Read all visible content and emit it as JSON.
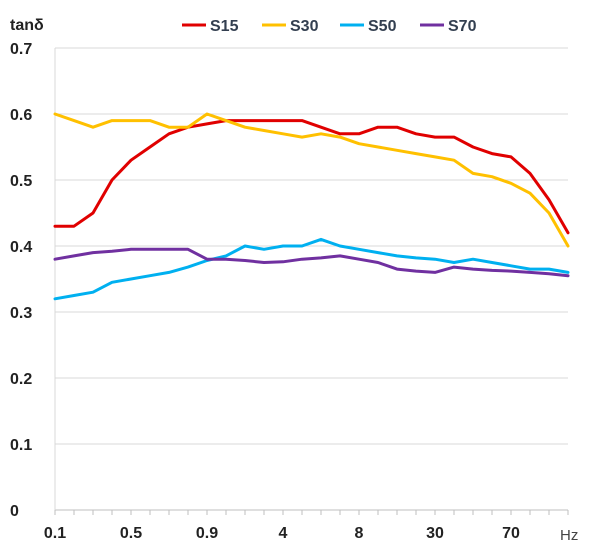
{
  "chart_data": {
    "type": "line",
    "ylabel": "tanδ",
    "xunit": "Hz",
    "ylim": [
      0,
      0.7
    ],
    "yticks": [
      "0",
      "0.1",
      "0.2",
      "0.3",
      "0.4",
      "0.5",
      "0.6",
      "0.7"
    ],
    "xticks": [
      "0.1",
      "0.5",
      "0.9",
      "4",
      "8",
      "30",
      "70"
    ],
    "grid": "horizontal",
    "legend_position": "top",
    "x": [
      0.1,
      0.2,
      0.3,
      0.4,
      0.5,
      0.6,
      0.7,
      0.8,
      0.9,
      1,
      2,
      3,
      4,
      5,
      6,
      7,
      8,
      9,
      10,
      20,
      30,
      40,
      50,
      60,
      70,
      80,
      90,
      100
    ],
    "series": [
      {
        "name": "S15",
        "color": "#e00000",
        "values": [
          0.43,
          0.43,
          0.45,
          0.5,
          0.53,
          0.55,
          0.57,
          0.58,
          0.585,
          0.59,
          0.59,
          0.59,
          0.59,
          0.59,
          0.58,
          0.57,
          0.57,
          0.58,
          0.58,
          0.57,
          0.565,
          0.565,
          0.55,
          0.54,
          0.535,
          0.51,
          0.47,
          0.42
        ]
      },
      {
        "name": "S30",
        "color": "#ffc000",
        "values": [
          0.6,
          0.59,
          0.58,
          0.59,
          0.59,
          0.59,
          0.58,
          0.58,
          0.6,
          0.59,
          0.58,
          0.575,
          0.57,
          0.565,
          0.57,
          0.565,
          0.555,
          0.55,
          0.545,
          0.54,
          0.535,
          0.53,
          0.51,
          0.505,
          0.495,
          0.48,
          0.45,
          0.4
        ]
      },
      {
        "name": "S50",
        "color": "#00b0f0",
        "values": [
          0.32,
          0.325,
          0.33,
          0.345,
          0.35,
          0.355,
          0.36,
          0.368,
          0.378,
          0.385,
          0.4,
          0.395,
          0.4,
          0.4,
          0.41,
          0.4,
          0.395,
          0.39,
          0.385,
          0.382,
          0.38,
          0.375,
          0.38,
          0.375,
          0.37,
          0.365,
          0.365,
          0.36
        ]
      },
      {
        "name": "S70",
        "color": "#7030a0",
        "values": [
          0.38,
          0.385,
          0.39,
          0.392,
          0.395,
          0.395,
          0.395,
          0.395,
          0.38,
          0.38,
          0.378,
          0.375,
          0.376,
          0.38,
          0.382,
          0.385,
          0.38,
          0.375,
          0.365,
          0.362,
          0.36,
          0.368,
          0.365,
          0.363,
          0.362,
          0.36,
          0.358,
          0.355
        ]
      }
    ]
  }
}
